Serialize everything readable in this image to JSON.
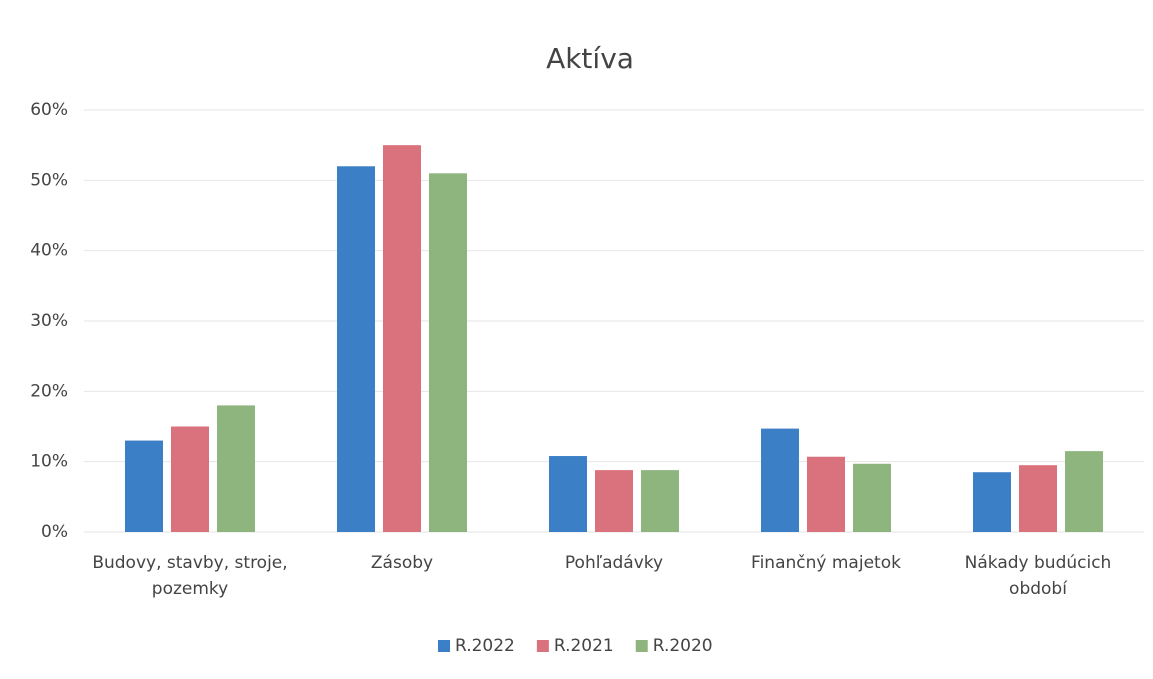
{
  "chart_data": {
    "type": "bar",
    "title": "Aktíva",
    "categories": [
      "Budovy, stavby, stroje, pozemky",
      "Zásoby",
      "Pohľadávky",
      "Finančný majetok",
      "Nákady budúcich období"
    ],
    "series": [
      {
        "name": "R.2022",
        "color": "#3b7fc6",
        "values": [
          13,
          52,
          10.8,
          14.7,
          8.5
        ]
      },
      {
        "name": "R.2021",
        "color": "#d9727c",
        "values": [
          15,
          55,
          8.8,
          10.7,
          9.5
        ]
      },
      {
        "name": "R.2020",
        "color": "#8fb57f",
        "values": [
          18,
          51,
          8.8,
          9.7,
          11.5
        ]
      }
    ],
    "ylim": [
      0,
      60
    ],
    "yticks": [
      {
        "value": 0,
        "label": "0%"
      },
      {
        "value": 10,
        "label": "10%"
      },
      {
        "value": 20,
        "label": "20%"
      },
      {
        "value": 30,
        "label": "30%"
      },
      {
        "value": 40,
        "label": "40%"
      },
      {
        "value": 50,
        "label": "50%"
      },
      {
        "value": 60,
        "label": "60%"
      }
    ],
    "grid": true,
    "legend": "bottom"
  }
}
